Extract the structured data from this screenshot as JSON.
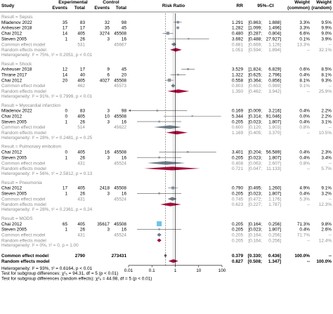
{
  "headers": {
    "study": "Study",
    "experimental": "Experimental",
    "control": "Control",
    "events": "Events",
    "total": "Total",
    "risk_ratio": "Risk Ratio",
    "rr": "RR",
    "ci": "95%–CI",
    "weight": "Weight",
    "weight_common": "(common)",
    "weight_random": "(random)"
  },
  "colors": {
    "square": "#8a95a3",
    "square_mods": "#6cc3ec",
    "diamond": "#a50d3b",
    "grey_text": "#8c8c8c",
    "common_diamond": "#6f7b89"
  },
  "chart_data": {
    "type": "forest",
    "x_scale": "log",
    "x_ticks": [
      0.01,
      0.1,
      1,
      10,
      100
    ],
    "x_tick_labels": [
      "0.01",
      "0.1",
      "1",
      "10",
      "100"
    ],
    "reference_lines": {
      "null_line": 1,
      "common_effect": 0.379,
      "random_effect": 0.827
    },
    "groups": [
      {
        "label": "Result = Sepsis",
        "studies": [
          {
            "study": "Mladenov 2022",
            "e_ev": "35",
            "e_tot": "83",
            "c_ev": "32",
            "c_tot": "98",
            "rr": 1.291,
            "lo": 0.863,
            "hi": 1.888,
            "rr_text": "1.291",
            "lo_text": "[0.863;",
            "hi_text": "1.888]",
            "w_common": "3.3%",
            "w_random": "9.5%"
          },
          {
            "study": "Anheuser 2018",
            "e_ev": "17",
            "e_tot": "17",
            "c_ev": "35",
            "c_tot": "45",
            "rr": 1.282,
            "lo": 1.099,
            "hi": 1.496,
            "rr_text": "1.282",
            "lo_text": "[1.099;",
            "hi_text": "1.496]",
            "w_common": "3.3%",
            "w_random": "9.9%"
          },
          {
            "study": "Chai 2012",
            "e_ev": "14",
            "e_tot": "405",
            "c_ev": "3274",
            "c_tot": "45508",
            "rr": 0.48,
            "lo": 0.287,
            "hi": 0.804,
            "rr_text": "0.480",
            "lo_text": "[0.287;",
            "hi_text": "0.804]",
            "w_common": "6.6%",
            "w_random": "9.0%"
          },
          {
            "study": "Steven 2005",
            "e_ev": "1",
            "e_tot": "26",
            "c_ev": "3",
            "c_tot": "16",
            "rr": 3.692,
            "lo": 0.488,
            "hi": 27.927,
            "rr_text": "3.692",
            "lo_text": "[0.488;",
            "hi_text": "27.927]",
            "w_common": "0.1%",
            "w_random": "3.9%"
          }
        ],
        "common": {
          "label": "Common effect model",
          "e_tot": "531",
          "c_tot": "45667",
          "rr": 0.881,
          "lo": 0.669,
          "hi": 1.126,
          "rr_text": "0.881",
          "lo_text": "[0.669;",
          "hi_text": "1.126]",
          "w_common": "13.3%",
          "w_random": "--"
        },
        "random": {
          "label": "Random effects model",
          "rr": 1.051,
          "lo": 0.594,
          "hi": 1.894,
          "rr_text": "1.051",
          "lo_text": "[0.594;",
          "hi_text": "1.894]",
          "w_common": "--",
          "w_random": "32.1%"
        },
        "heterogeneity": "Heterogeneity: I² = 75%, τ² = 0.2051, p < 0.01"
      },
      {
        "label": "Result = Shock",
        "studies": [
          {
            "study": "Anheuser 2018",
            "e_ev": "12",
            "e_tot": "17",
            "c_ev": "9",
            "c_tot": "45",
            "rr": 3.529,
            "lo": 1.824,
            "hi": 6.829,
            "rr_text": "3.529",
            "lo_text": "[1.824;",
            "hi_text": "6.829]",
            "w_common": "0.6%",
            "w_random": "8.5%"
          },
          {
            "study": "Thrane 2017",
            "e_ev": "14",
            "e_tot": "40",
            "c_ev": "6",
            "c_tot": "20",
            "rr": 1.322,
            "lo": 0.625,
            "hi": 2.796,
            "rr_text": "1.322",
            "lo_text": "[0.625;",
            "hi_text": "2.796]",
            "w_common": "0.4%",
            "w_random": "8.1%"
          },
          {
            "study": "Chai 2012",
            "e_ev": "20",
            "e_tot": "405",
            "c_ev": "4027",
            "c_tot": "45508",
            "rr": 0.558,
            "lo": 0.364,
            "hi": 0.856,
            "rr_text": "0.558",
            "lo_text": "[0.364;",
            "hi_text": "0.856]",
            "w_common": "8.1%",
            "w_random": "9.3%"
          }
        ],
        "common": {
          "label": "Common effect model",
          "e_tot": "462",
          "c_tot": "45573",
          "rr": 0.803,
          "lo": 0.653,
          "hi": 0.989,
          "rr_text": "0.803",
          "lo_text": "[0.653;",
          "hi_text": "0.989]",
          "w_common": "9.1%",
          "w_random": "--"
        },
        "random": {
          "label": "Random effects model",
          "rr": 1.35,
          "lo": 0.462,
          "hi": 3.942,
          "rr_text": "1.350",
          "lo_text": "[0.462;",
          "hi_text": "3.942]",
          "w_common": "--",
          "w_random": "25.9%"
        },
        "heterogeneity": "Heterogeneity: I² = 91%, τ² = 0.7999, p < 0.01"
      },
      {
        "label": "Result = Myocardial infarction",
        "studies": [
          {
            "study": "Mladenov 2022",
            "e_ev": "0",
            "e_tot": "83",
            "c_ev": "3",
            "c_tot": "98",
            "rr": 0.169,
            "lo": 0.009,
            "hi": 3.216,
            "rr_text": "0.169",
            "lo_text": "[0.009;",
            "hi_text": "3.216]",
            "w_common": "0.4%",
            "w_random": "2.2%"
          },
          {
            "study": "Chai 2012",
            "e_ev": "0",
            "e_tot": "405",
            "c_ev": "10",
            "c_tot": "45508",
            "rr": 5.344,
            "lo": 0.314,
            "hi": 91.046,
            "rr_text": "5.344",
            "lo_text": "[0.314;",
            "hi_text": "91.046]",
            "w_common": "0.0%",
            "w_random": "2.2%"
          },
          {
            "study": "Steven 2005",
            "e_ev": "1",
            "e_tot": "26",
            "c_ev": "3",
            "c_tot": "16",
            "rr": 0.205,
            "lo": 0.023,
            "hi": 1.807,
            "rr_text": "0.205",
            "lo_text": "[0.023;",
            "hi_text": "1.807]",
            "w_common": "0.4%",
            "w_random": "3.1%"
          }
        ],
        "common": {
          "label": "Common effect model",
          "e_tot": "514",
          "c_tot": "45622",
          "rr": 0.6,
          "lo": 0.12,
          "hi": 1.803,
          "rr_text": "0.600",
          "lo_text": "[0.120;",
          "hi_text": "1.803]",
          "w_common": "0.8%",
          "w_random": "--"
        },
        "random": {
          "label": "Random effects model",
          "rr": 1.169,
          "lo": 0.405,
          "hi": 3.37,
          "rr_text": "1.169",
          "lo_text": "[0.405;",
          "hi_text": "3.370]",
          "w_common": "--",
          "w_random": "10.5%"
        },
        "heterogeneity": "Heterogeneity: I² = 28%, τ² = 0.2481, p = 0.25"
      },
      {
        "label": "Result = Pulmonary embolism",
        "studies": [
          {
            "study": "Chai 2012",
            "e_ev": "0",
            "e_tot": "405",
            "c_ev": "16",
            "c_tot": "45508",
            "rr": 3.401,
            "lo": 0.204,
            "hi": 56.589,
            "rr_text": "3.401",
            "lo_text": "[0.204;",
            "hi_text": "56.589]",
            "w_common": "0.4%",
            "w_random": "2.3%"
          },
          {
            "study": "Steven 2005",
            "e_ev": "1",
            "e_tot": "26",
            "c_ev": "3",
            "c_tot": "16",
            "rr": 0.205,
            "lo": 0.023,
            "hi": 1.807,
            "rr_text": "0.205",
            "lo_text": "[0.023;",
            "hi_text": "1.807]",
            "w_common": "0.4%",
            "w_random": "3.4%"
          }
        ],
        "common": {
          "label": "Common effect model",
          "e_tot": "431",
          "c_tot": "45524",
          "rr": 0.408,
          "lo": 0.063,
          "hi": 2.607,
          "rr_text": "0.408",
          "lo_text": "[0.063;",
          "hi_text": "2.607]",
          "w_common": "0.8%",
          "w_random": "--"
        },
        "random": {
          "label": "Random effects model",
          "rr": 0.721,
          "lo": 0.047,
          "hi": 11.133,
          "rr_text": "0.721",
          "lo_text": "[0.047;",
          "hi_text": "11.133]",
          "w_common": "--",
          "w_random": "5.7%"
        },
        "heterogeneity": "Heterogeneity: I² = 56%, τ² = 2.5812, p = 0.13"
      },
      {
        "label": "Result = Pneumonia",
        "studies": [
          {
            "study": "Chai 2012",
            "e_ev": "17",
            "e_tot": "405",
            "c_ev": "2418",
            "c_tot": "45508",
            "rr": 0.79,
            "lo": 0.495,
            "hi": 1.26,
            "rr_text": "0.790",
            "lo_text": "[0.495;",
            "hi_text": "1.260]",
            "w_common": "4.9%",
            "w_random": "9.1%"
          },
          {
            "study": "Steven 2005",
            "e_ev": "1",
            "e_tot": "26",
            "c_ev": "3",
            "c_tot": "16",
            "rr": 0.205,
            "lo": 0.023,
            "hi": 1.807,
            "rr_text": "0.205",
            "lo_text": "[0.023;",
            "hi_text": "1.807]",
            "w_common": "0.4%",
            "w_random": "3.2%"
          }
        ],
        "common": {
          "label": "Common effect model",
          "e_tot": "431",
          "c_tot": "45524",
          "rr": 0.745,
          "lo": 0.472,
          "hi": 1.176,
          "rr_text": "0.745",
          "lo_text": "[0.472;",
          "hi_text": "1.176]",
          "w_common": "5.3%",
          "w_random": "--"
        },
        "random": {
          "label": "Random effects model",
          "rr": 0.623,
          "lo": 0.227,
          "hi": 1.787,
          "rr_text": "0.623",
          "lo_text": "[0.227;",
          "hi_text": "1.787]",
          "w_common": "--",
          "w_random": "12.3%"
        },
        "heterogeneity": "Heterogeneity: I² = 28%, τ² = 0.2361, p = 0.24"
      },
      {
        "label": "Result = MODS",
        "studies": [
          {
            "study": "Chai 2012",
            "e_ev": "65",
            "e_tot": "405",
            "c_ev": "35617",
            "c_tot": "45508",
            "rr": 0.205,
            "lo": 0.164,
            "hi": 0.256,
            "rr_text": "0.205",
            "lo_text": "[0.164;",
            "hi_text": "0.256]",
            "w_common": "71.3%",
            "w_random": "9.8%",
            "highlight": true
          },
          {
            "study": "Steven 2005",
            "e_ev": "1",
            "e_tot": "26",
            "c_ev": "3",
            "c_tot": "16",
            "rr": 0.205,
            "lo": 0.023,
            "hi": 1.807,
            "rr_text": "0.205",
            "lo_text": "[0.023;",
            "hi_text": "1.807]",
            "w_common": "0.4%",
            "w_random": "2.6%"
          }
        ],
        "common": {
          "label": "Common effect model",
          "e_tot": "431",
          "c_tot": "45524",
          "rr": 0.205,
          "lo": 0.164,
          "hi": 0.256,
          "rr_text": "0.205",
          "lo_text": "[0.164;",
          "hi_text": "0.256]",
          "w_common": "71.7%",
          "w_random": "--"
        },
        "random": {
          "label": "Random effects model",
          "rr": 0.205,
          "lo": 0.164,
          "hi": 0.256,
          "rr_text": "0.205",
          "lo_text": "[0.164;",
          "hi_text": "0.256]",
          "w_common": "--",
          "w_random": "12.4%"
        },
        "heterogeneity": "Heterogeneity: I² = 0%, τ² = 0, p = 1.00"
      }
    ],
    "overall": {
      "common": {
        "label": "Common effect model",
        "e_tot": "2790",
        "c_tot": "273431",
        "rr": 0.379,
        "lo": 0.33,
        "hi": 0.436,
        "rr_text": "0.379",
        "lo_text": "[0.330;",
        "hi_text": "0.436]",
        "w_common": "100.0%",
        "w_random": "--"
      },
      "random": {
        "label": "Random effects model",
        "rr": 0.827,
        "lo": 0.508,
        "hi": 1.347,
        "rr_text": "0.827",
        "lo_text": "[0.508;",
        "hi_text": "1.347]",
        "w_common": "--",
        "w_random": "100.0%"
      }
    },
    "footer": [
      "Heterogeneity: I² = 93%, τ² = 0.6164, p < 0.01",
      "Test for subgroup differences: χ²₅ = 94.31, df = 5 (p < 0.01)",
      "Test for subgroup differences (random effects): χ²₅ = 44.98, df = 5 (p < 0.01)"
    ]
  }
}
